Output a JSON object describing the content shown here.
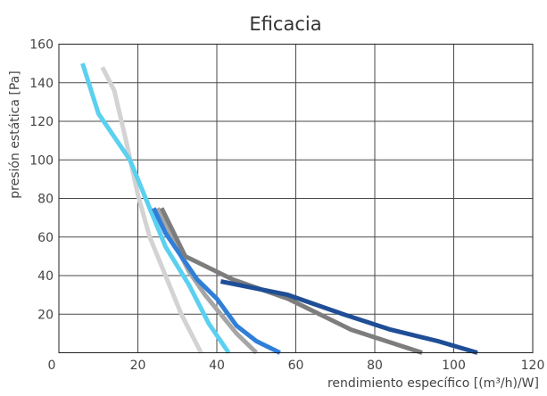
{
  "chart_data": {
    "type": "line",
    "title": "Eficacia",
    "xlabel": "rendimiento específico [(m³/h)/W]",
    "ylabel": "presión estática [Pa]",
    "xlim": [
      0,
      120
    ],
    "ylim": [
      0,
      160
    ],
    "xticks": [
      "0",
      "20",
      "40",
      "60",
      "80",
      "100",
      "120"
    ],
    "yticks": [
      "0",
      "20",
      "40",
      "60",
      "80",
      "100",
      "120",
      "140",
      "160"
    ],
    "grid": true,
    "legend": "none",
    "series": [
      {
        "color": "#d3d3d3",
        "x": [
          11,
          14,
          17,
          20,
          23,
          27,
          31,
          36
        ],
        "y": [
          148,
          136,
          110,
          82,
          60,
          40,
          20,
          0
        ]
      },
      {
        "color": "#5bd0f0",
        "x": [
          6,
          10,
          18,
          22,
          27,
          33,
          38,
          43
        ],
        "y": [
          150,
          124,
          100,
          80,
          55,
          35,
          15,
          0
        ]
      },
      {
        "color": "#a6a6a6",
        "x": [
          25,
          29,
          33,
          37,
          41,
          45,
          50
        ],
        "y": [
          75,
          58,
          42,
          30,
          20,
          10,
          0
        ]
      },
      {
        "color": "#2f7fd9",
        "x": [
          24,
          27,
          31,
          35,
          40,
          45,
          50,
          56
        ],
        "y": [
          75,
          62,
          50,
          38,
          28,
          14,
          6,
          0
        ]
      },
      {
        "color": "#7d7d7d",
        "x": [
          26,
          32,
          44,
          58,
          74,
          92
        ],
        "y": [
          75,
          50,
          38,
          28,
          12,
          0
        ]
      },
      {
        "color": "#1f4e96",
        "x": [
          41,
          58,
          72,
          84,
          96,
          106
        ],
        "y": [
          37,
          30,
          20,
          12,
          6,
          0
        ]
      }
    ]
  }
}
